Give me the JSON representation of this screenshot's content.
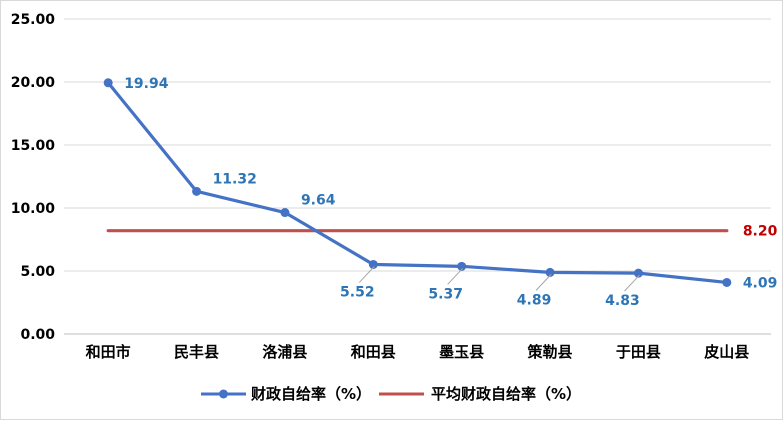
{
  "chart_data": {
    "type": "line",
    "title": "",
    "xlabel": "",
    "ylabel": "",
    "categories": [
      "和田市",
      "民丰县",
      "洛浦县",
      "和田县",
      "墨玉县",
      "策勒县",
      "于田县",
      "皮山县"
    ],
    "ylim": [
      0,
      25
    ],
    "yticks": [
      0,
      5,
      10,
      15,
      20,
      25
    ],
    "ytick_labels": [
      "0.00",
      "5.00",
      "10.00",
      "15.00",
      "20.00",
      "25.00"
    ],
    "grid": "horizontal",
    "legend_position": "bottom",
    "series": [
      {
        "name": "财政自给率（%）",
        "values": [
          19.94,
          11.32,
          9.64,
          5.52,
          5.37,
          4.89,
          4.83,
          4.09
        ],
        "value_labels": [
          "19.94",
          "11.32",
          "9.64",
          "5.52",
          "5.37",
          "4.89",
          "4.83",
          "4.09"
        ],
        "color": "#4472c4",
        "label_color": "#2e75b6",
        "marker": "circle"
      },
      {
        "name": "平均财政自给率（%）",
        "values": [
          8.2,
          8.2,
          8.2,
          8.2,
          8.2,
          8.2,
          8.2,
          8.2
        ],
        "value_labels": [
          "8.20"
        ],
        "color": "#c0504d",
        "label_color": "#c00000",
        "marker": "none"
      }
    ]
  }
}
